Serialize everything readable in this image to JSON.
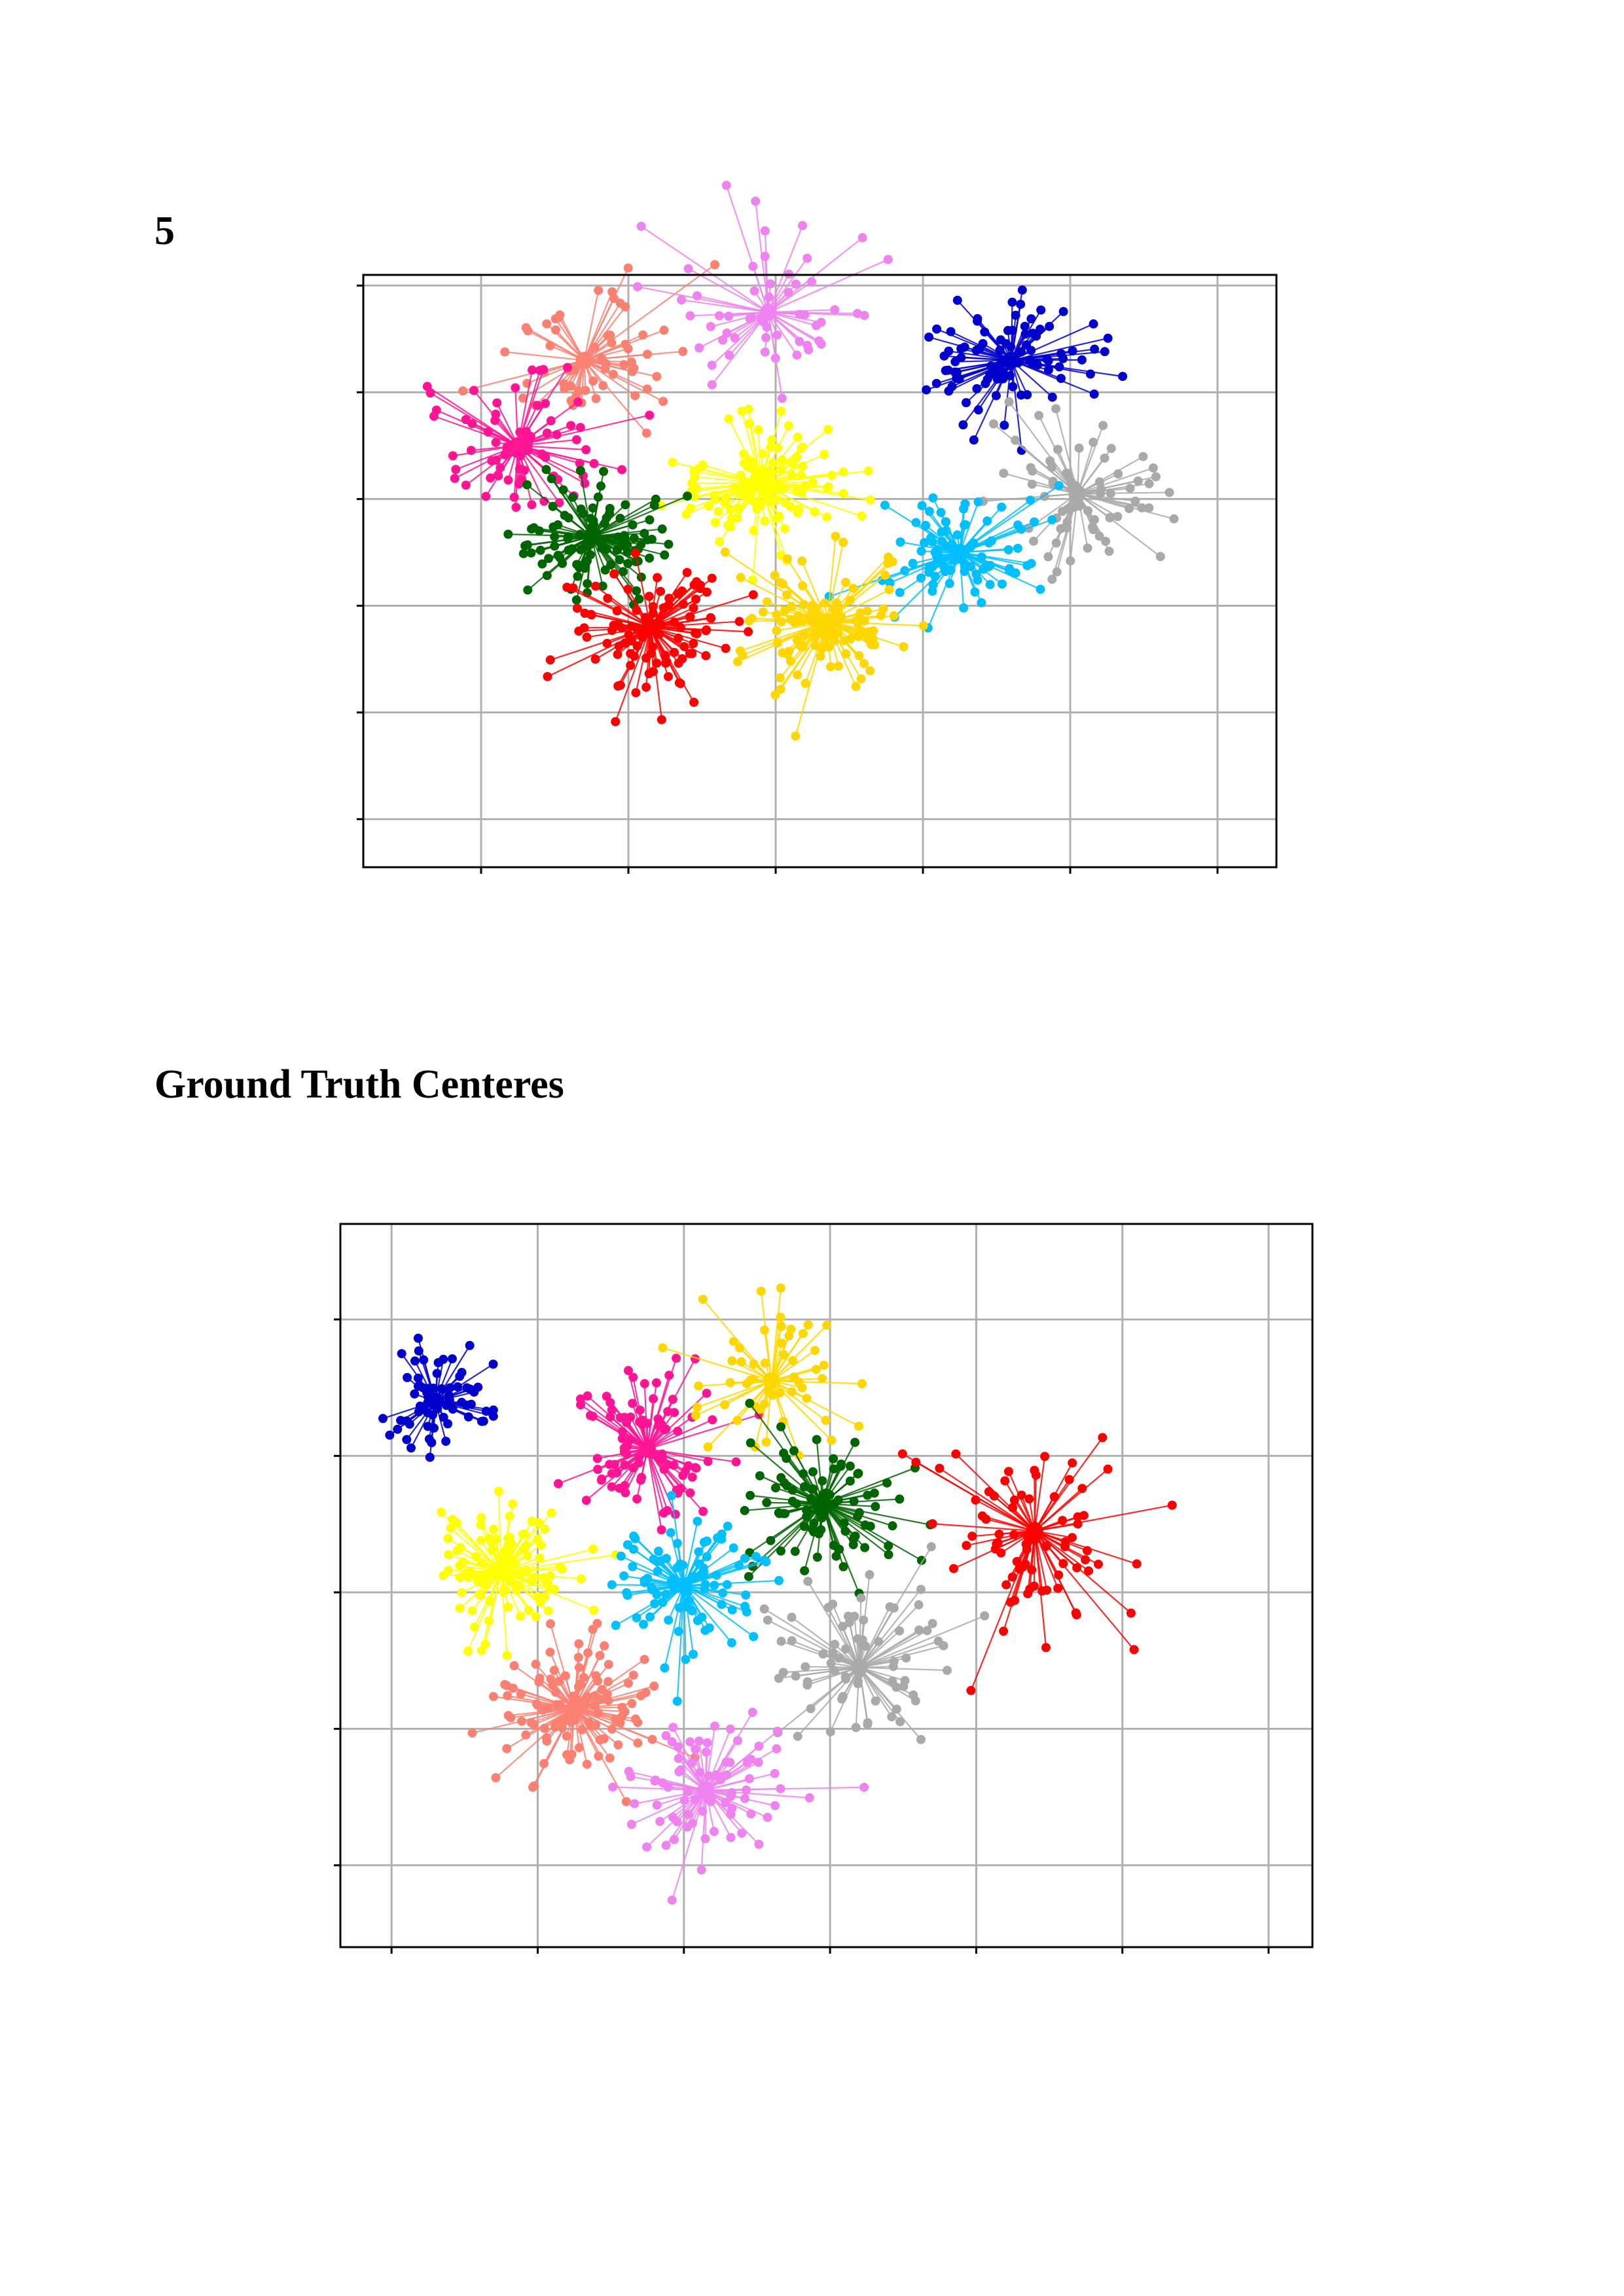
{
  "doc": {
    "heading_1": "5",
    "heading_2": "Ground Truth Centeres"
  },
  "chart_data": [
    {
      "type": "scatter",
      "title": "",
      "xlabel": "",
      "ylabel": "",
      "grid": true,
      "xlim": [
        -0.8,
        5.4
      ],
      "ylim": [
        -0.45,
        5.1
      ],
      "xticks": [
        0,
        1,
        2,
        3,
        4,
        5
      ],
      "yticks": [
        0,
        1,
        2,
        3,
        4,
        5
      ],
      "tick_labels_visible": false,
      "style": "each point joined to its cluster center by a line",
      "clusters": [
        {
          "color": "#fa8072",
          "center": [
            0.7,
            4.3
          ],
          "n": 60,
          "spread": 0.6
        },
        {
          "color": "#ee82ee",
          "center": [
            1.95,
            4.75
          ],
          "n": 55,
          "spread": 0.75
        },
        {
          "color": "#0000cd",
          "center": [
            3.6,
            4.3
          ],
          "n": 95,
          "spread": 0.55
        },
        {
          "color": "#ff1493",
          "center": [
            0.25,
            3.5
          ],
          "n": 75,
          "spread": 0.55
        },
        {
          "color": "#ffff00",
          "center": [
            1.9,
            3.15
          ],
          "n": 110,
          "spread": 0.55
        },
        {
          "color": "#a9a9a9",
          "center": [
            4.05,
            3.05
          ],
          "n": 70,
          "spread": 0.6
        },
        {
          "color": "#006400",
          "center": [
            0.75,
            2.65
          ],
          "n": 110,
          "spread": 0.5
        },
        {
          "color": "#00bfff",
          "center": [
            3.25,
            2.5
          ],
          "n": 90,
          "spread": 0.55
        },
        {
          "color": "#ff0000",
          "center": [
            1.15,
            1.8
          ],
          "n": 110,
          "spread": 0.55
        },
        {
          "color": "#ffd700",
          "center": [
            2.35,
            1.85
          ],
          "n": 115,
          "spread": 0.55
        }
      ]
    },
    {
      "type": "scatter",
      "title": "",
      "xlabel": "",
      "ylabel": "",
      "grid": true,
      "xlim": [
        -0.35,
        6.3
      ],
      "ylim": [
        -0.6,
        4.7
      ],
      "xticks": [
        0,
        1,
        2,
        3,
        4,
        5,
        6
      ],
      "yticks": [
        0,
        1,
        2,
        3,
        4
      ],
      "tick_labels_visible": false,
      "style": "each point joined to its cluster center by a line",
      "clusters": [
        {
          "color": "#0000cd",
          "center": [
            0.3,
            3.4
          ],
          "n": 65,
          "spread": 0.35
        },
        {
          "color": "#ff1493",
          "center": [
            1.75,
            3.05
          ],
          "n": 95,
          "spread": 0.5
        },
        {
          "color": "#ffd700",
          "center": [
            2.6,
            3.55
          ],
          "n": 55,
          "spread": 0.55
        },
        {
          "color": "#006400",
          "center": [
            2.95,
            2.65
          ],
          "n": 90,
          "spread": 0.5
        },
        {
          "color": "#ff0000",
          "center": [
            4.4,
            2.45
          ],
          "n": 80,
          "spread": 0.7
        },
        {
          "color": "#ffff00",
          "center": [
            0.75,
            2.15
          ],
          "n": 110,
          "spread": 0.45
        },
        {
          "color": "#00bfff",
          "center": [
            2.0,
            2.05
          ],
          "n": 90,
          "spread": 0.5
        },
        {
          "color": "#a9a9a9",
          "center": [
            3.2,
            1.45
          ],
          "n": 75,
          "spread": 0.55
        },
        {
          "color": "#fa8072",
          "center": [
            1.25,
            1.15
          ],
          "n": 110,
          "spread": 0.5
        },
        {
          "color": "#ee82ee",
          "center": [
            2.15,
            0.55
          ],
          "n": 80,
          "spread": 0.55
        }
      ]
    }
  ]
}
